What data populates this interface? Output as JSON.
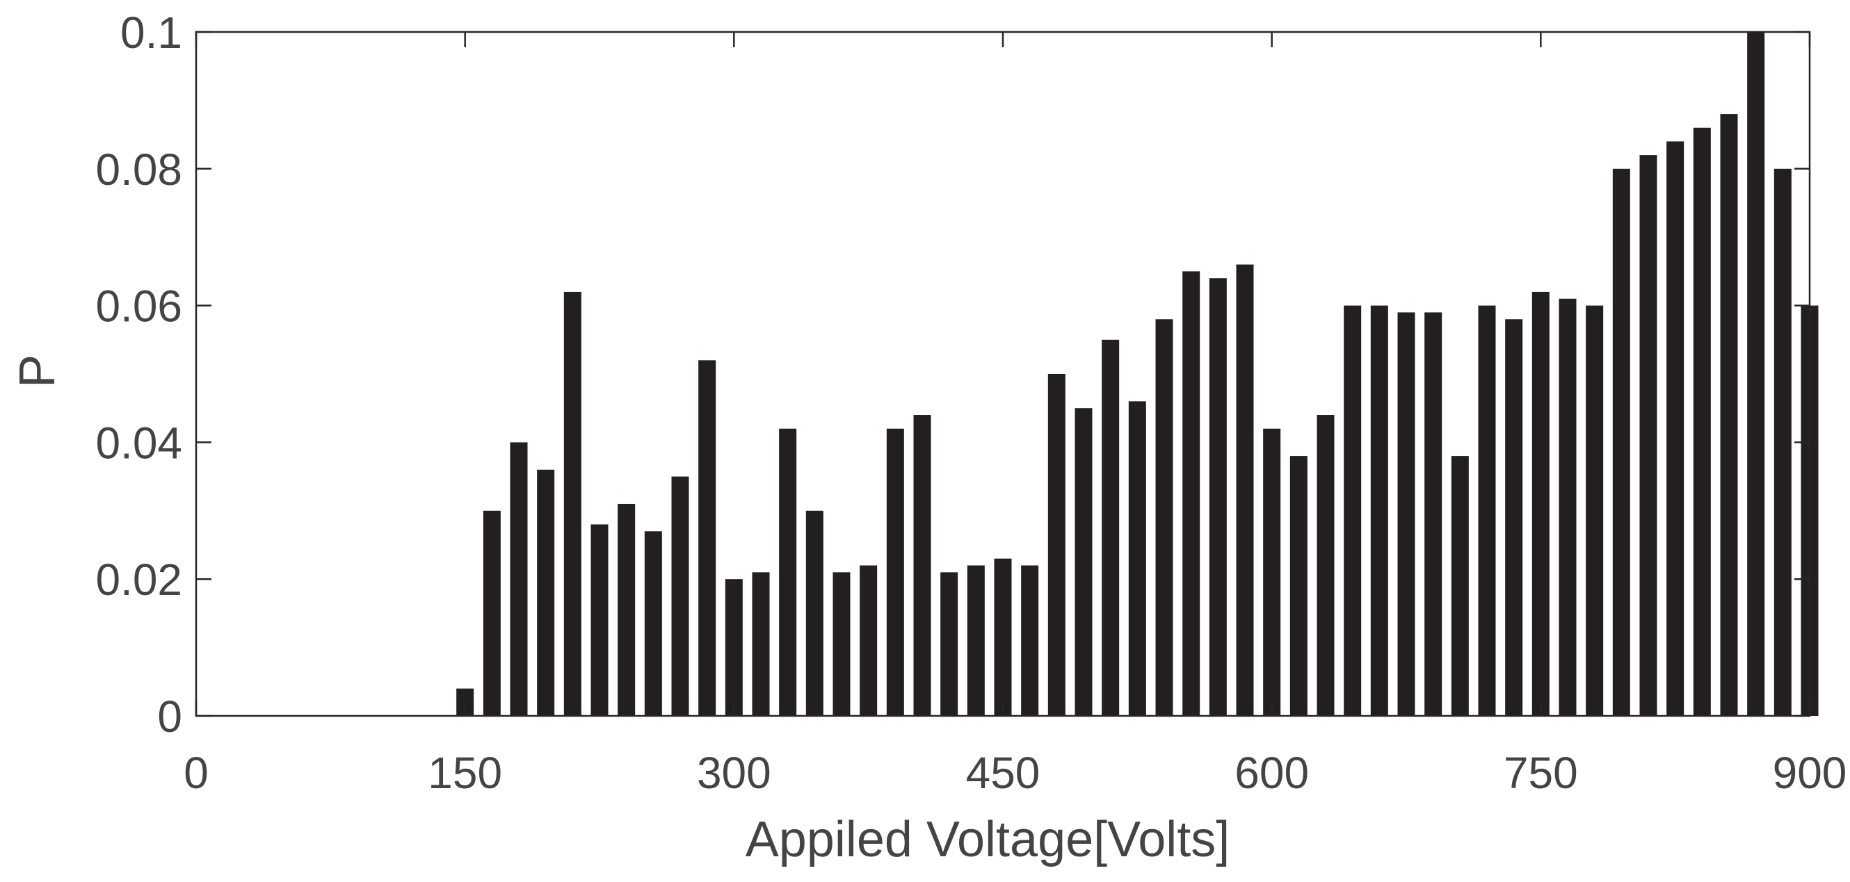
{
  "chart_data": {
    "type": "bar",
    "xlabel": "Appiled Voltage[Volts]",
    "ylabel": "P",
    "xlim": [
      0,
      900
    ],
    "ylim": [
      0,
      0.1
    ],
    "xticks": [
      0,
      150,
      300,
      450,
      600,
      750,
      900
    ],
    "xtick_labels": [
      "0",
      "150",
      "300",
      "450",
      "600",
      "750",
      "900"
    ],
    "yticks": [
      0,
      0.02,
      0.04,
      0.06,
      0.08,
      0.1
    ],
    "ytick_labels": [
      "0",
      "0.02",
      "0.04",
      "0.06",
      "0.08",
      "0.1"
    ],
    "grid": false,
    "bar_color": "#231f20",
    "x": [
      150,
      165,
      180,
      195,
      210,
      225,
      240,
      255,
      270,
      285,
      300,
      315,
      330,
      345,
      360,
      375,
      390,
      405,
      420,
      435,
      450,
      465,
      480,
      495,
      510,
      525,
      540,
      555,
      570,
      585,
      600,
      615,
      630,
      645,
      660,
      675,
      690,
      705,
      720,
      735,
      750,
      765,
      780,
      795,
      810,
      825,
      840,
      855,
      870,
      885,
      900
    ],
    "values": [
      0.004,
      0.03,
      0.04,
      0.036,
      0.062,
      0.028,
      0.031,
      0.027,
      0.035,
      0.052,
      0.02,
      0.021,
      0.042,
      0.03,
      0.021,
      0.022,
      0.042,
      0.044,
      0.021,
      0.022,
      0.023,
      0.022,
      0.05,
      0.045,
      0.055,
      0.046,
      0.058,
      0.065,
      0.064,
      0.066,
      0.042,
      0.038,
      0.044,
      0.06,
      0.06,
      0.059,
      0.059,
      0.038,
      0.06,
      0.058,
      0.062,
      0.061,
      0.06,
      0.08,
      0.082,
      0.084,
      0.086,
      0.088,
      0.1,
      0.08,
      0.06
    ]
  }
}
